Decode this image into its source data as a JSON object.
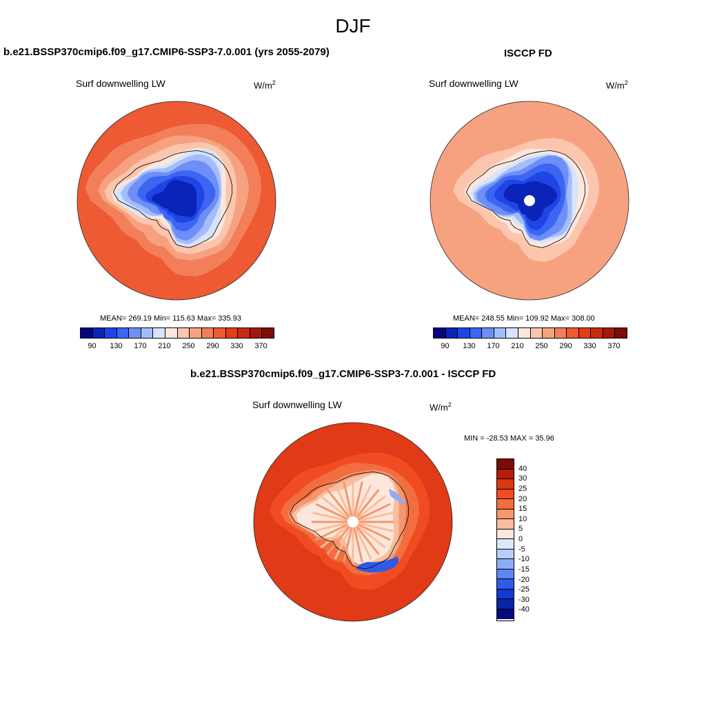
{
  "figure": {
    "title": "DJF",
    "units_base": "W/m",
    "units_exp": "2"
  },
  "panels": {
    "model": {
      "title": "b.e21.BSSP370cmip6.f09_g17.CMIP6-SSP3-7.0.001 (yrs 2055-2079)",
      "variable": "Surf downwelling LW",
      "stats": "MEAN= 269.19  Min= 115.63  Max= 335.93"
    },
    "obs": {
      "title": "ISCCP FD",
      "variable": "Surf downwelling LW",
      "stats": "MEAN= 248.55  Min= 109.92  Max= 308.00"
    },
    "diff": {
      "title": "b.e21.BSSP370cmip6.f09_g17.CMIP6-SSP3-7.0.001 - ISCCP FD",
      "variable": "Surf downwelling LW",
      "stats": "MIN = -28.53 MAX =  35.96"
    }
  },
  "colorbars": {
    "abs": {
      "colors": [
        "#04047e",
        "#0a24b8",
        "#1f45e6",
        "#3c66f2",
        "#6d8ff7",
        "#a4bdfa",
        "#d6e4fc",
        "#fde7dc",
        "#fbc6ad",
        "#f6a281",
        "#f27f5a",
        "#ee5a34",
        "#e43c1b",
        "#c92a12",
        "#a11a0b",
        "#7d0c06"
      ],
      "tick_labels": [
        "90",
        "130",
        "170",
        "210",
        "250",
        "290",
        "330",
        "370"
      ]
    },
    "diff": {
      "colors": [
        "#7a0c04",
        "#b91c0a",
        "#db3812",
        "#f04c22",
        "#f26e41",
        "#f5976d",
        "#f8be9f",
        "#fde7dc",
        "#dde8fd",
        "#b9cffa",
        "#8facf6",
        "#5f87f2",
        "#2f5ae8",
        "#123ad2",
        "#0a24a8",
        "#050a7a"
      ],
      "tick_labels": [
        "40",
        "30",
        "25",
        "20",
        "15",
        "10",
        "5",
        "0",
        "-5",
        "-10",
        "-15",
        "-20",
        "-25",
        "-30",
        "-40"
      ]
    }
  },
  "maps": {
    "model": {
      "levels": [
        {
          "color": "#ee5a34",
          "r": 0.0
        },
        {
          "color": "#f27f5a",
          "r": 0.13
        },
        {
          "color": "#f6a281",
          "r": 0.27
        },
        {
          "color": "#fbc6ad",
          "r": 0.36
        },
        {
          "color": "#fde7dc",
          "r": 0.45
        },
        {
          "color": "#d6e4fc",
          "r": 0.5
        },
        {
          "color": "#a4bdfa",
          "r": 0.55
        },
        {
          "color": "#6d8ff7",
          "r": 0.62
        },
        {
          "color": "#3c66f2",
          "r": 0.72
        },
        {
          "color": "#1f45e6",
          "r": 0.82
        },
        {
          "color": "#0a24b8",
          "r": 0.9
        }
      ]
    },
    "obs": {
      "levels": [
        {
          "color": "#f6a281",
          "r": 0.0
        },
        {
          "color": "#fbc6ad",
          "r": 0.3
        },
        {
          "color": "#fde7dc",
          "r": 0.42
        },
        {
          "color": "#d6e4fc",
          "r": 0.5
        },
        {
          "color": "#a4bdfa",
          "r": 0.55
        },
        {
          "color": "#6d8ff7",
          "r": 0.6
        },
        {
          "color": "#3c66f2",
          "r": 0.68
        },
        {
          "color": "#1f45e6",
          "r": 0.78
        },
        {
          "color": "#0a24b8",
          "r": 0.88
        }
      ]
    },
    "diff": {
      "levels": [
        {
          "color": "#e03a16",
          "r": 0.0
        },
        {
          "color": "#f04c22",
          "r": 0.22
        },
        {
          "color": "#f26e41",
          "r": 0.34
        },
        {
          "color": "#f5976d",
          "r": 0.44
        },
        {
          "color": "#f8be9f",
          "r": 0.5
        },
        {
          "color": "#fde7dc",
          "r": 0.56
        }
      ]
    }
  }
}
